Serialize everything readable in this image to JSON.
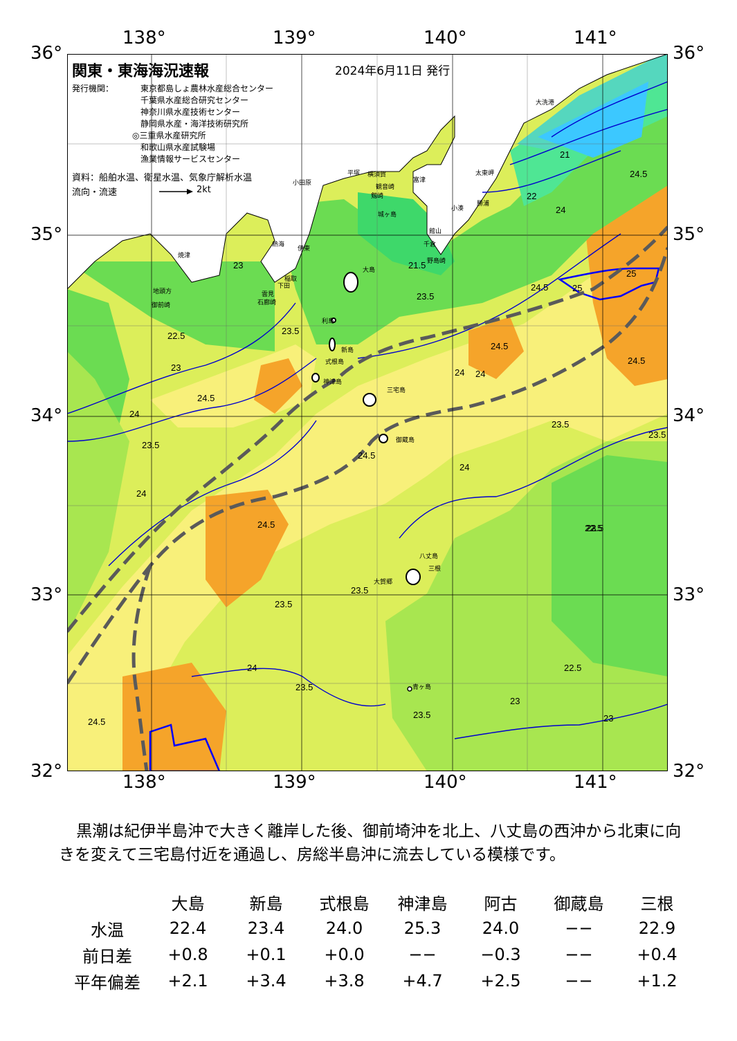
{
  "map": {
    "title": "関東・東海海況速報",
    "issue_date": "2024年6月11日 発行",
    "issuer_label": "発行機関：",
    "issuers": [
      "東京都島しょ農林水産総合センター",
      "千葉県水産総合研究センター",
      "神奈川県水産技術センター",
      "静岡県水産・海洋技術研究所",
      "◎三重県水産研究所",
      "和歌山県水産試験場",
      "漁業情報サービスセンター"
    ],
    "source": "資料：船舶水温、衛星水温、気象庁解析水温",
    "flow_legend": "流向・流速",
    "flow_scale": "2kt",
    "lon_labels": [
      "138°",
      "139°",
      "140°",
      "141°"
    ],
    "lat_labels": [
      "36°",
      "35°",
      "34°",
      "33°",
      "32°"
    ],
    "place_names": [
      "大洗港",
      "太東岬",
      "小湊",
      "勝浦",
      "平塚",
      "横須賀",
      "観音崎",
      "剱崎",
      "城ヶ島",
      "富津",
      "館山",
      "千倉",
      "野島崎",
      "小田原",
      "熱海",
      "伊東",
      "稲取",
      "下田",
      "石廊崎",
      "雲見",
      "大島",
      "利島",
      "新島",
      "式根島",
      "神津島",
      "三宅島",
      "御蔵島",
      "八丈島",
      "三根",
      "大賀郷",
      "青ヶ島",
      "焼津",
      "御前崎",
      "地頭方"
    ],
    "contour_labels": [
      "21",
      "21.5",
      "22",
      "22.5",
      "23",
      "23.5",
      "24",
      "24.5",
      "25"
    ],
    "colors": {
      "c_below_21": "#3cc8ff",
      "c_21": "#55d7be",
      "c_21_5": "#4fe694",
      "c_22": "#3ed86a",
      "c_22_5": "#6bdc52",
      "c_23": "#a8e650",
      "c_23_5": "#dcee5a",
      "c_24": "#f8f07a",
      "c_24_5": "#fad06a",
      "c_25": "#f5a42a",
      "land": "#ffffff",
      "contour": "#0000cd",
      "kuroshio": "#5a5a5a"
    }
  },
  "comment": "黒潮は紀伊半島沖で大きく離岸した後、御前埼沖を北上、八丈島の西沖から北東に向きを変えて三宅島付近を通過し、房総半島沖に流去している模様です。",
  "table": {
    "stations": [
      "大島",
      "新島",
      "式根島",
      "神津島",
      "阿古",
      "御蔵島",
      "三根"
    ],
    "rows": [
      {
        "label": "水温",
        "values": [
          "22.4",
          "23.4",
          "24.0",
          "25.3",
          "24.0",
          "−−",
          "22.9"
        ]
      },
      {
        "label": "前日差",
        "values": [
          "+0.8",
          "+0.1",
          "+0.0",
          "−−",
          "−0.3",
          "−−",
          "+0.4"
        ]
      },
      {
        "label": "平年偏差",
        "values": [
          "+2.1",
          "+3.4",
          "+3.8",
          "+4.7",
          "+2.5",
          "−−",
          "+1.2"
        ]
      }
    ]
  }
}
